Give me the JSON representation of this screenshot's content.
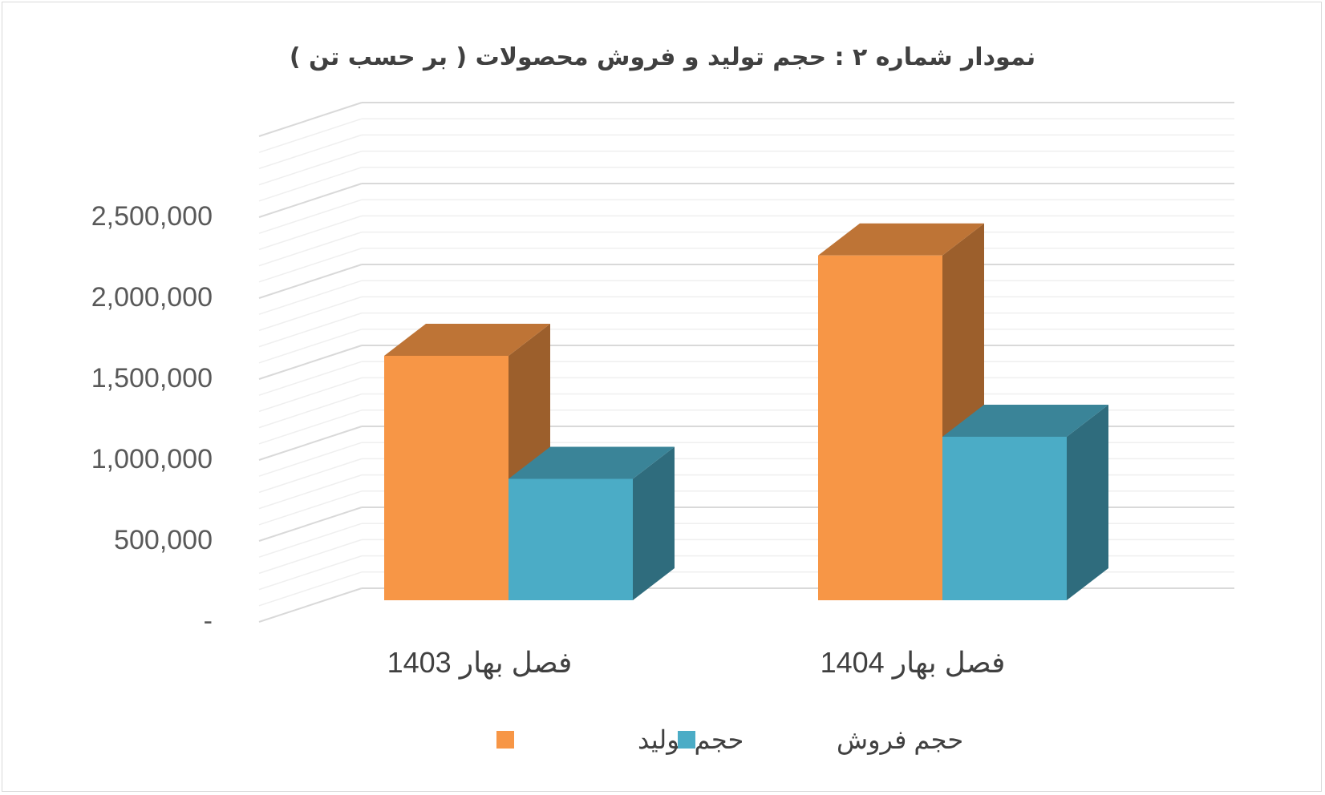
{
  "chart_data": {
    "type": "bar",
    "title": "نمودار شماره ۲ : حجم  تولید و فروش محصولات ( بر حسب تن )",
    "categories": [
      "فصل بهار 1403",
      "فصل بهار 1404"
    ],
    "series": [
      {
        "name": "حجم تولید",
        "values": [
          1510000,
          2130000
        ],
        "color": "#F79646"
      },
      {
        "name": "حجم فروش",
        "values": [
          750000,
          1010000
        ],
        "color": "#4BACC6"
      }
    ],
    "y_ticks": [
      "-",
      "500,000",
      "1,000,000",
      "1,500,000",
      "2,000,000",
      "2,500,000"
    ],
    "ylim": [
      0,
      2500000
    ],
    "grid": true,
    "legend_position": "bottom",
    "style": "3d-clustered-column"
  }
}
